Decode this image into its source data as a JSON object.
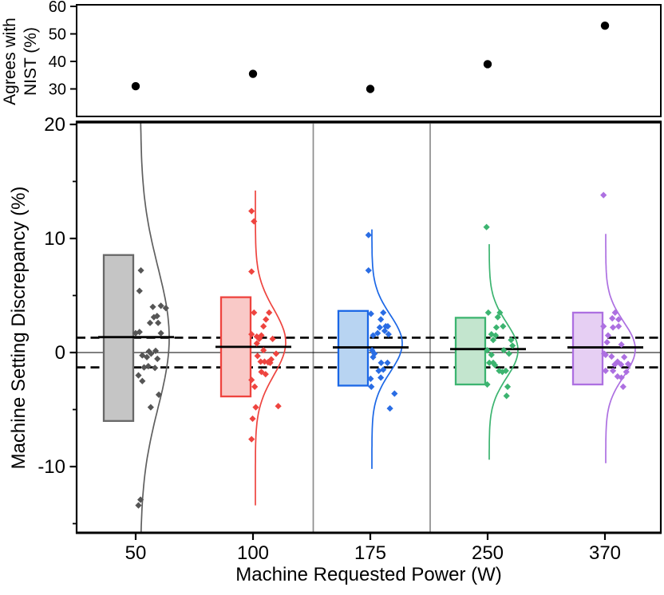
{
  "figure": {
    "background": "#ffffff",
    "top_panel": {
      "ylabel_line1": "Agrees with",
      "ylabel_line2": "NIST (%)",
      "yticks": [
        60,
        50,
        40,
        30
      ],
      "ylim": [
        20,
        60
      ]
    },
    "bottom_panel": {
      "ylabel": "Machine Setting Discrepancy (%)",
      "yticks_major": [
        20,
        10,
        0,
        -10
      ],
      "yticks_minor": [
        15,
        5,
        -5,
        -15
      ],
      "ylim": [
        -15.8,
        20.2
      ],
      "zero_line": 0,
      "dashed_reference_lines": [
        1.3,
        -1.3
      ],
      "separator_color": "#8c8c8c",
      "dash_color": "#000000"
    },
    "x_axis": {
      "label": "Machine Requested Power (W)",
      "categories": [
        "50",
        "100",
        "175",
        "250",
        "370"
      ]
    }
  },
  "chart_data": [
    {
      "type": "scatter",
      "panel": "top",
      "title": "",
      "ylabel": "Agrees with NIST (%)",
      "x": [
        "50",
        "100",
        "175",
        "250",
        "370"
      ],
      "values": [
        31,
        35.5,
        30,
        39,
        53
      ],
      "ylim": [
        20,
        60
      ],
      "marker": {
        "shape": "circle",
        "color": "#000000"
      }
    },
    {
      "type": "raincloud",
      "panel": "bottom",
      "ylabel": "Machine Setting Discrepancy (%)",
      "xlabel": "Machine Requested Power (W)",
      "ylim": [
        -15.8,
        20.2
      ],
      "zero_line": 0,
      "dashed_lines": [
        1.3,
        -1.3
      ],
      "groups": [
        {
          "label": "50",
          "colors": {
            "fill": "#c5c5c5",
            "stroke": "#686868",
            "point": "#555555",
            "violin": "#5f5f5f"
          },
          "bar": {
            "top": 8.55,
            "bottom": -6.0
          },
          "mean": 1.35,
          "violin": {
            "mode": 1.3,
            "sigma": 6.2,
            "top": 20.2,
            "bottom": -15.7
          },
          "points": [
            [
              0.24,
              7.2
            ],
            [
              0.2,
              5.4
            ],
            [
              0.81,
              4.1
            ],
            [
              0.58,
              4.0
            ],
            [
              0.95,
              3.9
            ],
            [
              0.7,
              3.2
            ],
            [
              0.61,
              3.1
            ],
            [
              0.5,
              2.6
            ],
            [
              0.73,
              2.6
            ],
            [
              0.2,
              1.8
            ],
            [
              0.09,
              1.7
            ],
            [
              0.81,
              1.7
            ],
            [
              0.47,
              0.1
            ],
            [
              0.66,
              0.15
            ],
            [
              0.28,
              -0.25
            ],
            [
              0.41,
              -0.4
            ],
            [
              0.53,
              -0.1
            ],
            [
              0.71,
              -0.55
            ],
            [
              0.33,
              -1.3
            ],
            [
              0.45,
              -1.2
            ],
            [
              0.64,
              -1.35
            ],
            [
              0.17,
              -2.0
            ],
            [
              0.28,
              -2.5
            ],
            [
              0.75,
              -3.7
            ],
            [
              0.52,
              -4.8
            ],
            [
              0.23,
              -12.9
            ],
            [
              0.17,
              -13.4
            ]
          ]
        },
        {
          "label": "100",
          "colors": {
            "fill": "#f9c9c7",
            "stroke": "#ee443f",
            "point": "#ee443f",
            "violin": "#ee443f"
          },
          "bar": {
            "top": 4.85,
            "bottom": -3.85
          },
          "mean": 0.5,
          "violin": {
            "mode": 0.9,
            "sigma": 2.9,
            "top": 14.2,
            "bottom": -13.4
          },
          "points": [
            [
              0.05,
              12.4
            ],
            [
              0.12,
              11.5
            ],
            [
              0.05,
              7.1
            ],
            [
              0.12,
              3.5
            ],
            [
              0.55,
              3.5
            ],
            [
              0.46,
              2.9
            ],
            [
              0.39,
              2.3
            ],
            [
              0.05,
              1.6
            ],
            [
              0.33,
              1.5
            ],
            [
              0.2,
              1.4
            ],
            [
              0.27,
              1.2
            ],
            [
              0.65,
              1.2
            ],
            [
              0.2,
              0.8
            ],
            [
              0.39,
              0.2
            ],
            [
              0.75,
              -0.1
            ],
            [
              0.22,
              -0.3
            ],
            [
              0.31,
              -0.8
            ],
            [
              0.42,
              -0.8
            ],
            [
              0.52,
              -0.85
            ],
            [
              0.61,
              -0.6
            ],
            [
              0.58,
              -0.9
            ],
            [
              0.33,
              -1.7
            ],
            [
              0.45,
              -1.9
            ],
            [
              0.05,
              -2.4
            ],
            [
              0.14,
              -3.0
            ],
            [
              0.81,
              -4.7
            ],
            [
              0.17,
              -4.8
            ],
            [
              0.08,
              -5.8
            ],
            [
              0.05,
              -7.6
            ]
          ]
        },
        {
          "label": "175",
          "colors": {
            "fill": "#b8d4f2",
            "stroke": "#1b67e6",
            "point": "#2a6de4",
            "violin": "#1b67e6"
          },
          "bar": {
            "top": 3.65,
            "bottom": -2.9
          },
          "mean": 0.45,
          "violin": {
            "mode": 0.8,
            "sigma": 2.5,
            "top": 10.8,
            "bottom": -10.2
          },
          "points": [
            [
              0.04,
              10.3
            ],
            [
              0.04,
              7.2
            ],
            [
              0.46,
              3.5
            ],
            [
              0.11,
              3.4
            ],
            [
              0.39,
              2.9
            ],
            [
              0.53,
              2.3
            ],
            [
              0.59,
              2.3
            ],
            [
              0.36,
              2.2
            ],
            [
              0.5,
              1.9
            ],
            [
              0.3,
              1.7
            ],
            [
              0.61,
              1.6
            ],
            [
              0.17,
              1.5
            ],
            [
              0.14,
              0.2
            ],
            [
              0.21,
              -0.1
            ],
            [
              0.17,
              -0.4
            ],
            [
              0.4,
              -0.9
            ],
            [
              0.58,
              -0.9
            ],
            [
              0.33,
              -1.6
            ],
            [
              0.46,
              -1.5
            ],
            [
              0.39,
              -2.2
            ],
            [
              0.1,
              -2.3
            ],
            [
              0.12,
              -3.0
            ],
            [
              0.78,
              -3.6
            ],
            [
              0.65,
              -4.9
            ]
          ]
        },
        {
          "label": "250",
          "colors": {
            "fill": "#c3e5ce",
            "stroke": "#3cb470",
            "point": "#3cb470",
            "violin": "#3cb470"
          },
          "bar": {
            "top": 3.05,
            "bottom": -2.8
          },
          "mean": 0.3,
          "violin": {
            "mode": 0.2,
            "sigma": 2.4,
            "top": 9.5,
            "bottom": -9.4
          },
          "points": [
            [
              0.06,
              11.0
            ],
            [
              0.11,
              3.5
            ],
            [
              0.44,
              3.5
            ],
            [
              0.38,
              3.1
            ],
            [
              0.34,
              2.2
            ],
            [
              0.53,
              2.3
            ],
            [
              0.2,
              1.6
            ],
            [
              0.32,
              1.5
            ],
            [
              0.25,
              1.1
            ],
            [
              0.76,
              1.1
            ],
            [
              0.8,
              0.6
            ],
            [
              0.08,
              0.2
            ],
            [
              0.55,
              0.2
            ],
            [
              0.2,
              -0.2
            ],
            [
              0.7,
              -0.1
            ],
            [
              0.14,
              -0.9
            ],
            [
              0.25,
              -0.9
            ],
            [
              0.3,
              -1.1
            ],
            [
              0.42,
              -1.6
            ],
            [
              0.51,
              -1.7
            ],
            [
              0.61,
              -1.6
            ],
            [
              0.08,
              -2.8
            ],
            [
              0.66,
              -3.0
            ],
            [
              0.63,
              -3.8
            ]
          ]
        },
        {
          "label": "370",
          "colors": {
            "fill": "#e6cff3",
            "stroke": "#ad70e1",
            "point": "#ad70e1",
            "violin": "#ad70e1"
          },
          "bar": {
            "top": 3.5,
            "bottom": -2.8
          },
          "mean": 0.45,
          "violin": {
            "mode": 0.3,
            "sigma": 2.4,
            "top": 10.4,
            "bottom": -9.7
          },
          "points": [
            [
              0.05,
              13.8
            ],
            [
              0.38,
              3.5
            ],
            [
              0.3,
              3.0
            ],
            [
              0.48,
              2.9
            ],
            [
              0.05,
              2.3
            ],
            [
              0.48,
              2.3
            ],
            [
              0.32,
              2.2
            ],
            [
              0.18,
              1.5
            ],
            [
              0.15,
              0.9
            ],
            [
              0.56,
              0.7
            ],
            [
              0.07,
              -0.1
            ],
            [
              0.11,
              -0.2
            ],
            [
              0.28,
              -0.35
            ],
            [
              0.64,
              -0.4
            ],
            [
              0.45,
              -0.8
            ],
            [
              0.75,
              -1.0
            ],
            [
              0.37,
              -1.05
            ],
            [
              0.55,
              -1.05
            ],
            [
              0.11,
              -1.6
            ],
            [
              0.32,
              -1.6
            ],
            [
              0.7,
              -1.7
            ],
            [
              0.45,
              -2.1
            ],
            [
              0.56,
              -2.2
            ],
            [
              0.61,
              -3.0
            ]
          ]
        }
      ]
    }
  ]
}
